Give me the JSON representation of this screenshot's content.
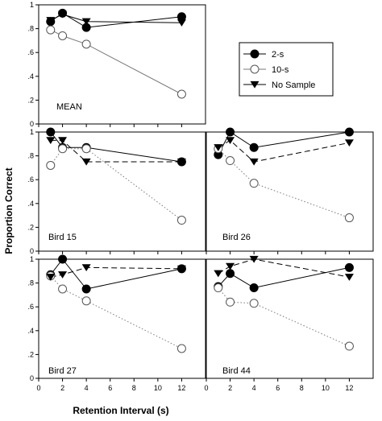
{
  "chart_data": {
    "type": "line",
    "xlabel": "Retention Interval (s)",
    "ylabel": "Proportion Correct",
    "xlim": [
      0,
      14
    ],
    "ylim": [
      0,
      1
    ],
    "x_ticks": [
      "0",
      "2",
      "4",
      "6",
      "8",
      "10",
      "12"
    ],
    "y_ticks": [
      "0",
      ".2",
      ".4",
      ".6",
      ".8",
      "1"
    ],
    "legend": {
      "placement": "top-right",
      "entries": [
        {
          "label": "2-s",
          "series": "2-s"
        },
        {
          "label": "10-s",
          "series": "10-s"
        },
        {
          "label": "No Sample",
          "series": "No Sample"
        }
      ]
    },
    "series_styles": {
      "2-s": {
        "marker": "filled-circle",
        "line": "solid",
        "color": "#000000"
      },
      "10-s": {
        "marker": "open-circle",
        "line": "solid-mean-dotted-birds",
        "color": "#7a7a7a"
      },
      "No Sample": {
        "marker": "filled-triangle-down",
        "line": "solid-mean-dashed-birds",
        "color": "#000000"
      }
    },
    "panels": [
      {
        "label": "MEAN",
        "x_ticks_visible": false,
        "series": [
          {
            "name": "2-s",
            "x": [
              1,
              2,
              4,
              12
            ],
            "y": [
              0.86,
              0.93,
              0.81,
              0.9
            ]
          },
          {
            "name": "10-s",
            "x": [
              1,
              2,
              4,
              12
            ],
            "y": [
              0.79,
              0.74,
              0.67,
              0.25
            ]
          },
          {
            "name": "No Sample",
            "x": [
              1,
              2,
              4,
              12
            ],
            "y": [
              0.87,
              0.92,
              0.86,
              0.85
            ]
          }
        ]
      },
      {
        "label": "Bird 15",
        "x_ticks_visible": false,
        "series": [
          {
            "name": "2-s",
            "x": [
              1,
              2,
              4,
              12
            ],
            "y": [
              1.0,
              0.87,
              0.87,
              0.75
            ]
          },
          {
            "name": "10-s",
            "x": [
              1,
              2,
              4,
              12
            ],
            "y": [
              0.72,
              0.86,
              0.86,
              0.26
            ]
          },
          {
            "name": "No Sample",
            "x": [
              1,
              2,
              4,
              12
            ],
            "y": [
              0.93,
              0.93,
              0.75,
              0.75
            ]
          }
        ]
      },
      {
        "label": "Bird 26",
        "x_ticks_visible": false,
        "series": [
          {
            "name": "2-s",
            "x": [
              1,
              2,
              4,
              12
            ],
            "y": [
              0.81,
              1.0,
              0.87,
              1.0
            ]
          },
          {
            "name": "10-s",
            "x": [
              1,
              2,
              4,
              12
            ],
            "y": [
              0.86,
              0.76,
              0.57,
              0.28
            ]
          },
          {
            "name": "No Sample",
            "x": [
              1,
              2,
              4,
              12
            ],
            "y": [
              0.87,
              0.93,
              0.75,
              0.91
            ]
          }
        ]
      },
      {
        "label": "Bird 27",
        "x_ticks_visible": true,
        "series": [
          {
            "name": "2-s",
            "x": [
              1,
              2,
              4,
              12
            ],
            "y": [
              0.87,
              1.0,
              0.75,
              0.92
            ]
          },
          {
            "name": "10-s",
            "x": [
              1,
              2,
              4,
              12
            ],
            "y": [
              0.86,
              0.75,
              0.65,
              0.25
            ]
          },
          {
            "name": "No Sample",
            "x": [
              1,
              2,
              4,
              12
            ],
            "y": [
              0.85,
              0.87,
              0.93,
              0.92
            ]
          }
        ]
      },
      {
        "label": "Bird 44",
        "x_ticks_visible": true,
        "series": [
          {
            "name": "2-s",
            "x": [
              1,
              2,
              4,
              12
            ],
            "y": [
              0.77,
              0.88,
              0.76,
              0.93
            ]
          },
          {
            "name": "10-s",
            "x": [
              1,
              2,
              4,
              12
            ],
            "y": [
              0.76,
              0.64,
              0.63,
              0.27
            ]
          },
          {
            "name": "No Sample",
            "x": [
              1,
              2,
              4,
              12
            ],
            "y": [
              0.88,
              0.94,
              1.0,
              0.85
            ]
          }
        ]
      }
    ]
  }
}
